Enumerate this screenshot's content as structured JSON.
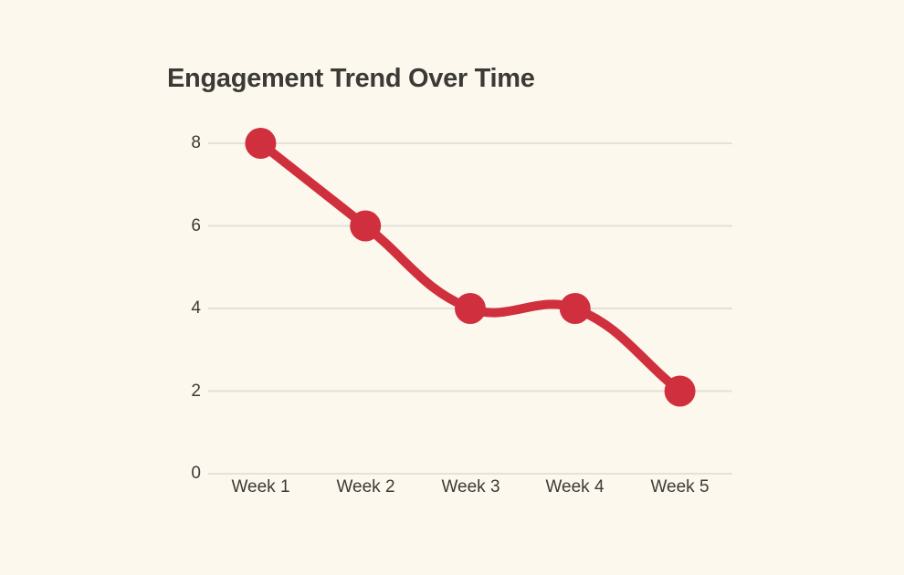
{
  "chart_data": {
    "type": "line",
    "title": "Engagement Trend Over Time",
    "categories": [
      "Week 1",
      "Week 2",
      "Week 3",
      "Week 4",
      "Week 5"
    ],
    "values": [
      8,
      6,
      4,
      4,
      2
    ],
    "xlabel": "",
    "ylabel": "",
    "ylim": [
      0,
      8
    ],
    "yticks": [
      0,
      2,
      4,
      6,
      8
    ],
    "ytick_labels_desc": [
      "8",
      "6",
      "4",
      "2",
      "0"
    ],
    "grid": true,
    "legend": false,
    "curve": "spline",
    "tension": 0.4,
    "line_width": 10,
    "marker_radius": 17,
    "line_color": "#d0303d",
    "marker_color": "#d0303d",
    "grid_color": "#e4e1d8",
    "text_color": "#3b3a36",
    "background": "#fdf8ee"
  }
}
